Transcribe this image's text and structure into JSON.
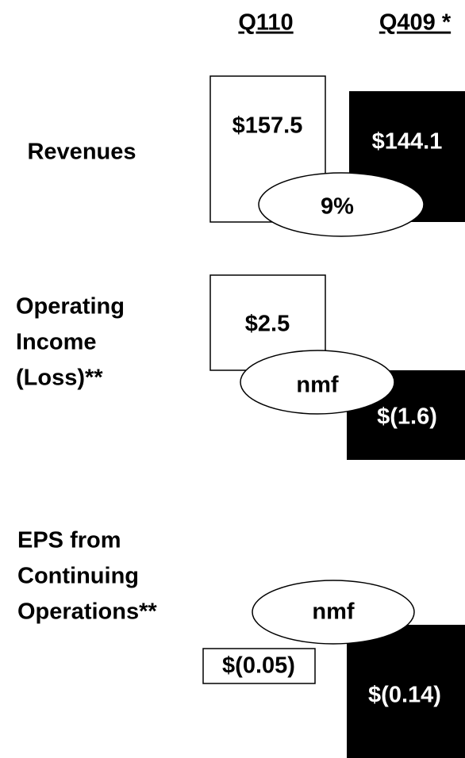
{
  "header": {
    "columns": [
      "Q110",
      "Q409 *"
    ]
  },
  "rows": [
    {
      "label": [
        "Revenues"
      ],
      "q110": "$157.5",
      "q409": "$144.1",
      "change": "9%"
    },
    {
      "label": [
        "Operating",
        "Income",
        "(Loss)**"
      ],
      "q110": "$2.5",
      "q409": "$(1.6)",
      "change": "nmf"
    },
    {
      "label": [
        "EPS from",
        "Continuing",
        "Operations**"
      ],
      "q110": "$(0.05)",
      "q409": "$(0.14)",
      "change": "nmf"
    }
  ]
}
